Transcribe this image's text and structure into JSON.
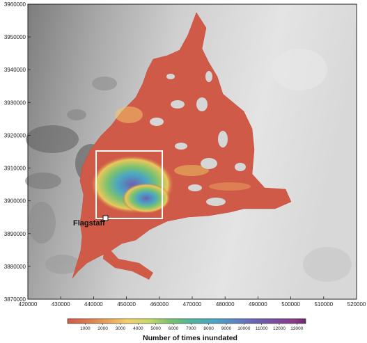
{
  "map": {
    "x_ticks": [
      "420000",
      "430000",
      "440000",
      "450000",
      "460000",
      "470000",
      "480000",
      "490000",
      "500000",
      "510000",
      "520000"
    ],
    "y_ticks": [
      "3960000",
      "3950000",
      "3940000",
      "3930000",
      "3920000",
      "3910000",
      "3900000",
      "3890000",
      "3880000",
      "3870000"
    ],
    "city_label": "Flagstaff"
  },
  "legend": {
    "title": "Number of times inundated",
    "tick_labels": [
      "1000",
      "2000",
      "3000",
      "4000",
      "5000",
      "6000",
      "7000",
      "8000",
      "9000",
      "10000",
      "11000",
      "12000",
      "13000"
    ],
    "colors": [
      "#d05a48",
      "#d9794e",
      "#e8a35c",
      "#f2d06a",
      "#c8d86a",
      "#7cc26e",
      "#4fb49a",
      "#4aa6c4",
      "#5b86c4",
      "#6b62b0",
      "#7a4a9c",
      "#8a3a88",
      "#6a2a70"
    ]
  }
}
